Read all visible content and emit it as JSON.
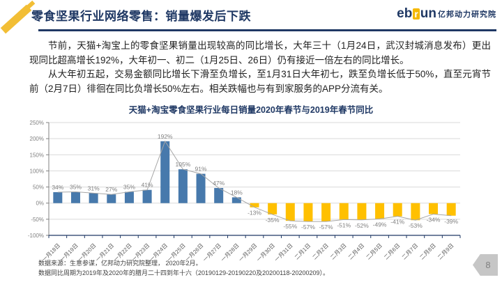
{
  "theme": {
    "navy": "#1F3864",
    "gold": "#F2BE35"
  },
  "header": {
    "title": "零食坚果行业网络零售：销量爆发后下跌",
    "logo": {
      "eb": "eb",
      "r": "r",
      "un": "un",
      "cn": "亿邦动力研究院"
    }
  },
  "body": {
    "paragraph1": "节前，天猫+淘宝上的零食坚果销量出现较高的同比增长，大年三十（1月24日，武汉封城消息发布）更出现同比超高增长192%，大年初一、初二（1月25日、26日）仍有接近一倍左右的同比增长。",
    "paragraph2": "从大年初五起，交易金额同比增长下滑至负增长，至1月31日大年初七，跌至负增长低于50%，直至元宵节前（2月7日）徘徊在同比负增长50%左右。相关跌幅也与有到家服务的APP分流有关。"
  },
  "chart_data": {
    "type": "bar",
    "title": "天猫+淘宝零食坚果行业每日销量2020年春节与2019年春节同比",
    "categories": [
      "一月18日",
      "一月19日",
      "一月20日",
      "一月21日",
      "一月22日",
      "一月23日",
      "一月24日",
      "一月25日",
      "一月26日",
      "一月27日",
      "一月28日",
      "一月29日",
      "一月30日",
      "一月31日",
      "二月1日",
      "二月2日",
      "二月3日",
      "二月4日",
      "二月5日",
      "二月6日",
      "二月7日",
      "二月8日",
      "二月9日"
    ],
    "values": [
      34,
      35,
      31,
      27,
      35,
      41,
      192,
      105,
      91,
      47,
      18,
      -13,
      -35,
      -55,
      -57,
      -57,
      -51,
      -52,
      -49,
      -41,
      -53,
      -34,
      -39
    ],
    "unit": "%",
    "ylim": [
      -100,
      250
    ],
    "ytick_step": 50,
    "grid": true,
    "legend": "none",
    "overlay_line": "same-series",
    "colors": {
      "positive": "#4779AC",
      "negative": "#FFC000",
      "line": "#A6A6A6",
      "axis": "#1F3864",
      "grid": "#D9D9D9",
      "tick_label": "#808080",
      "bar_label": "#7F7F7F",
      "x_label": "#595959"
    }
  },
  "footer": {
    "line1": "数据来源：生意参谋，亿邦动力研究院整理， 2020年2月。",
    "line2": "数据同比周期为2019年及2020年的腊月二十四到年十六（20190129-20190220及20200118-20200209）。",
    "page": "8"
  }
}
